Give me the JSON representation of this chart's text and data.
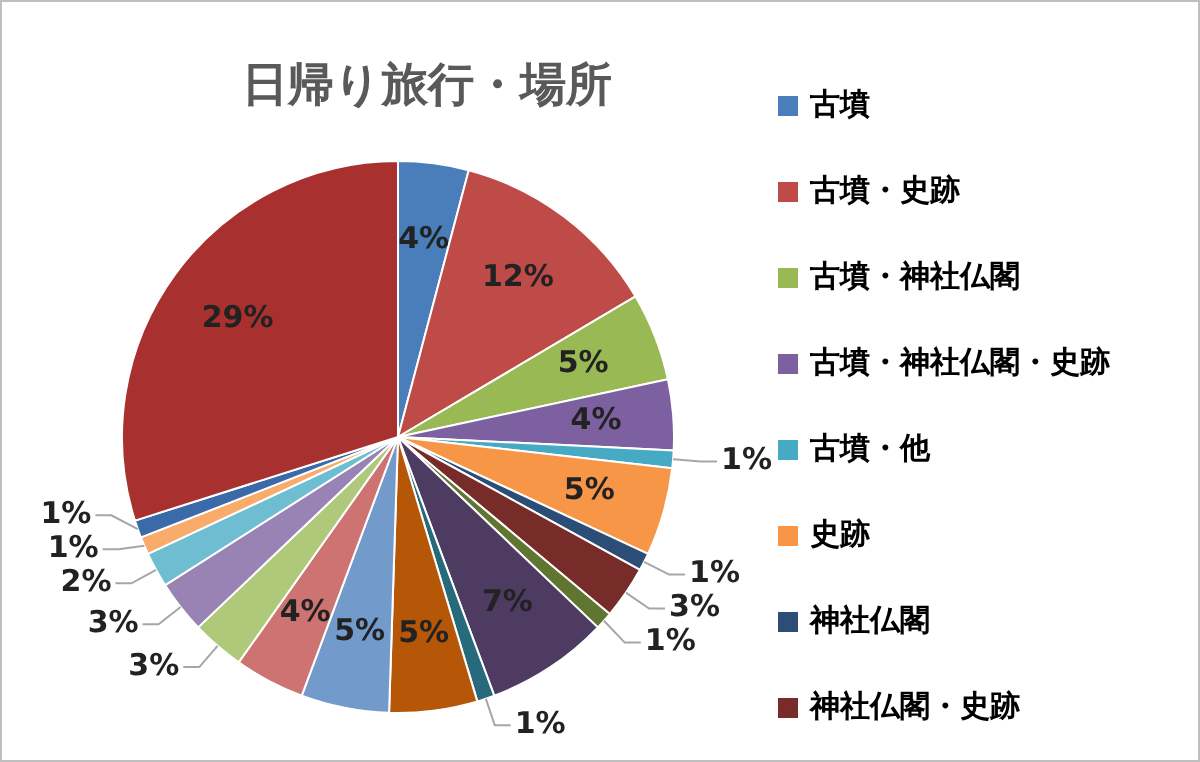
{
  "chart_data": {
    "type": "pie",
    "title": "日帰り旅行・場所",
    "categories": [
      "古墳",
      "古墳・史跡",
      "古墳・神社仏閣",
      "古墳・神社仏閣・史跡",
      "古墳・他",
      "史跡",
      "神社仏閣",
      "神社仏閣・史跡",
      null,
      null,
      null,
      null,
      null,
      null,
      null,
      null,
      null,
      null,
      null,
      null
    ],
    "values": [
      4,
      12,
      5,
      4,
      1,
      5,
      1,
      3,
      1,
      7,
      1,
      5,
      5,
      4,
      3,
      3,
      2,
      1,
      1,
      29
    ],
    "colors": [
      "#4a7ebb",
      "#be4b48",
      "#98b954",
      "#7d60a0",
      "#46aac5",
      "#f79646",
      "#2c4d75",
      "#772c2a",
      "#5f7530",
      "#4d3b62",
      "#276a7c",
      "#b65708",
      "#729aca",
      "#cd7371",
      "#aec97a",
      "#9983b5",
      "#6fbdd1",
      "#f9ab6b",
      "#3a6aa8",
      "#a8302e"
    ],
    "value_labels": [
      "4%",
      "12%",
      "5%",
      "4%",
      "1%",
      "5%",
      "1%",
      "3%",
      "1%",
      "7%",
      "1%",
      "5%",
      "5%",
      "4%",
      "3%",
      "3%",
      "2%",
      "1%",
      "1%",
      "29%"
    ],
    "legend": "right"
  }
}
